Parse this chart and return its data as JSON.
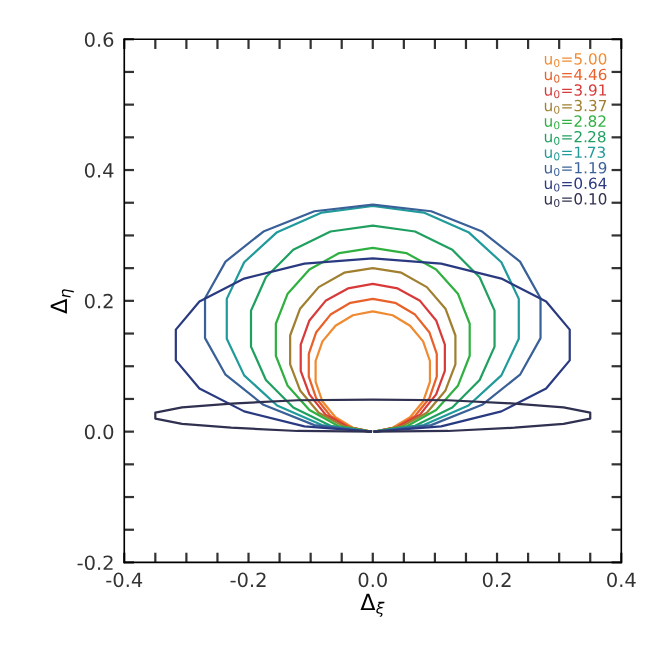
{
  "chart_data": {
    "type": "line",
    "xlabel": "Δ$_{ξ}$",
    "ylabel": "Δ$_{η}$",
    "xlim": [
      -0.4,
      0.4
    ],
    "ylim": [
      -0.2,
      0.6
    ],
    "xticks": [
      -0.4,
      {
        "value": -0.35,
        "label": null
      },
      {
        "value": -0.3,
        "label": null
      },
      {
        "value": -0.25,
        "label": null
      },
      -0.2,
      {
        "value": -0.15,
        "label": null
      },
      {
        "value": -0.1,
        "label": null
      },
      {
        "value": -0.05,
        "label": null
      },
      {
        "value": 0,
        "label": "0.0"
      },
      {
        "value": 0.05,
        "label": null
      },
      {
        "value": 0.1,
        "label": null
      },
      {
        "value": 0.15,
        "label": null
      },
      0.2,
      {
        "value": 0.25,
        "label": null
      },
      {
        "value": 0.3,
        "label": null
      },
      {
        "value": 0.35,
        "label": null
      },
      0.4
    ],
    "yticks": [
      -0.2,
      {
        "value": -0.15,
        "label": null
      },
      {
        "value": -0.1,
        "label": null
      },
      {
        "value": -0.05,
        "label": null
      },
      {
        "value": 0,
        "label": "0.0"
      },
      {
        "value": 0.05,
        "label": null
      },
      {
        "value": 0.1,
        "label": null
      },
      {
        "value": 0.15,
        "label": null
      },
      0.2,
      {
        "value": 0.25,
        "label": null
      },
      {
        "value": 0.3,
        "label": null
      },
      {
        "value": 0.35,
        "label": null
      },
      0.4,
      {
        "value": 0.45,
        "label": null
      },
      {
        "value": 0.5,
        "label": null
      },
      {
        "value": 0.55,
        "label": null
      },
      0.6
    ],
    "grid": false,
    "legend": "top right",
    "marker": "none",
    "line_style": "solid",
    "series": [
      {
        "name": "u$_{0}$=5.00",
        "color": "#f08a30",
        "x": [
          0.003,
          0.032,
          0.06,
          0.081,
          0.092,
          0.092,
          0.081,
          0.06,
          0.032,
          0,
          -0.032,
          -0.06,
          -0.081,
          -0.092,
          -0.092,
          -0.081,
          -0.06,
          -0.032,
          -0.003
        ],
        "values": [
          0,
          0.006,
          0.022,
          0.046,
          0.076,
          0.108,
          0.138,
          0.162,
          0.178,
          0.184,
          0.178,
          0.162,
          0.138,
          0.108,
          0.076,
          0.046,
          0.022,
          0.006,
          0
        ]
      },
      {
        "name": "u$_{0}$=4.46",
        "color": "#e8602a",
        "x": [
          0.003,
          0.036,
          0.068,
          0.091,
          0.103,
          0.103,
          0.091,
          0.068,
          0.036,
          0,
          -0.036,
          -0.068,
          -0.091,
          -0.103,
          -0.103,
          -0.091,
          -0.068,
          -0.036,
          -0.003
        ],
        "values": [
          0,
          0.006,
          0.024,
          0.051,
          0.084,
          0.119,
          0.152,
          0.179,
          0.197,
          0.203,
          0.197,
          0.179,
          0.152,
          0.119,
          0.084,
          0.051,
          0.024,
          0.006,
          0
        ]
      },
      {
        "name": "u$_{0}$=3.91",
        "color": "#d83a3a",
        "x": [
          0.003,
          0.04,
          0.076,
          0.102,
          0.116,
          0.116,
          0.102,
          0.076,
          0.04,
          0,
          -0.04,
          -0.076,
          -0.102,
          -0.116,
          -0.116,
          -0.102,
          -0.076,
          -0.04,
          -0.003
        ],
        "values": [
          0,
          0.007,
          0.026,
          0.057,
          0.093,
          0.133,
          0.17,
          0.2,
          0.219,
          0.226,
          0.219,
          0.2,
          0.17,
          0.133,
          0.093,
          0.057,
          0.026,
          0.007,
          0
        ]
      },
      {
        "name": "u$_{0}$=3.37",
        "color": "#a08030",
        "x": [
          0.003,
          0.046,
          0.087,
          0.117,
          0.133,
          0.133,
          0.117,
          0.087,
          0.046,
          0,
          -0.046,
          -0.087,
          -0.117,
          -0.133,
          -0.133,
          -0.117,
          -0.087,
          -0.046,
          -0.003
        ],
        "values": [
          0,
          0.008,
          0.029,
          0.063,
          0.103,
          0.147,
          0.188,
          0.221,
          0.243,
          0.25,
          0.243,
          0.221,
          0.188,
          0.147,
          0.103,
          0.063,
          0.029,
          0.008,
          0
        ]
      },
      {
        "name": "u$_{0}$=2.82",
        "color": "#30b040",
        "x": [
          0.003,
          0.054,
          0.102,
          0.137,
          0.156,
          0.156,
          0.137,
          0.102,
          0.054,
          0,
          -0.054,
          -0.102,
          -0.137,
          -0.156,
          -0.156,
          -0.137,
          -0.102,
          -0.054,
          -0.003
        ],
        "values": [
          0,
          0.008,
          0.033,
          0.07,
          0.116,
          0.165,
          0.211,
          0.248,
          0.273,
          0.281,
          0.273,
          0.248,
          0.211,
          0.165,
          0.116,
          0.07,
          0.033,
          0.008,
          0
        ]
      },
      {
        "name": "u$_{0}$=2.28",
        "color": "#20a060",
        "x": [
          0.003,
          0.068,
          0.128,
          0.172,
          0.196,
          0.196,
          0.172,
          0.128,
          0.068,
          0,
          -0.068,
          -0.128,
          -0.172,
          -0.196,
          -0.196,
          -0.172,
          -0.128,
          -0.068,
          -0.003
        ],
        "values": [
          0,
          0.009,
          0.037,
          0.079,
          0.13,
          0.185,
          0.236,
          0.278,
          0.306,
          0.315,
          0.306,
          0.278,
          0.236,
          0.185,
          0.13,
          0.079,
          0.037,
          0.009,
          0
        ]
      },
      {
        "name": "u$_{0}$=1.73",
        "color": "#209a9a",
        "x": [
          0.003,
          0.082,
          0.154,
          0.207,
          0.235,
          0.235,
          0.207,
          0.154,
          0.082,
          0,
          -0.082,
          -0.154,
          -0.207,
          -0.235,
          -0.235,
          -0.207,
          -0.154,
          -0.082,
          -0.003
        ],
        "values": [
          0,
          0.01,
          0.04,
          0.086,
          0.142,
          0.203,
          0.259,
          0.305,
          0.335,
          0.345,
          0.335,
          0.305,
          0.259,
          0.203,
          0.142,
          0.086,
          0.04,
          0.01,
          0
        ]
      },
      {
        "name": "u$_{0}$=1.19",
        "color": "#3a6098",
        "x": [
          0.003,
          0.094,
          0.176,
          0.237,
          0.27,
          0.27,
          0.237,
          0.176,
          0.094,
          0,
          -0.094,
          -0.176,
          -0.237,
          -0.27,
          -0.27,
          -0.237,
          -0.176,
          -0.094,
          -0.003
        ],
        "values": [
          0,
          0.01,
          0.041,
          0.087,
          0.143,
          0.204,
          0.26,
          0.306,
          0.337,
          0.347,
          0.337,
          0.306,
          0.26,
          0.204,
          0.143,
          0.087,
          0.041,
          0.01,
          0
        ]
      },
      {
        "name": "u$_{0}$=0.64",
        "color": "#2a3a80",
        "x": [
          0.003,
          0.11,
          0.207,
          0.279,
          0.317,
          0.317,
          0.279,
          0.207,
          0.11,
          0,
          -0.11,
          -0.207,
          -0.279,
          -0.317,
          -0.317,
          -0.279,
          -0.207,
          -0.11,
          -0.003
        ],
        "values": [
          0,
          0.008,
          0.031,
          0.066,
          0.109,
          0.156,
          0.199,
          0.234,
          0.257,
          0.265,
          0.257,
          0.234,
          0.199,
          0.156,
          0.109,
          0.066,
          0.031,
          0.008,
          0
        ]
      },
      {
        "name": "u$_{0}$=0.10",
        "color": "#303050",
        "x": [
          0.003,
          0.121,
          0.228,
          0.307,
          0.35,
          0.35,
          0.307,
          0.228,
          0.121,
          0,
          -0.121,
          -0.228,
          -0.307,
          -0.35,
          -0.35,
          -0.307,
          -0.228,
          -0.121,
          -0.003
        ],
        "values": [
          0,
          0.001,
          0.006,
          0.012,
          0.02,
          0.029,
          0.037,
          0.043,
          0.048,
          0.049,
          0.048,
          0.043,
          0.037,
          0.029,
          0.02,
          0.012,
          0.006,
          0.001,
          0
        ]
      }
    ]
  }
}
